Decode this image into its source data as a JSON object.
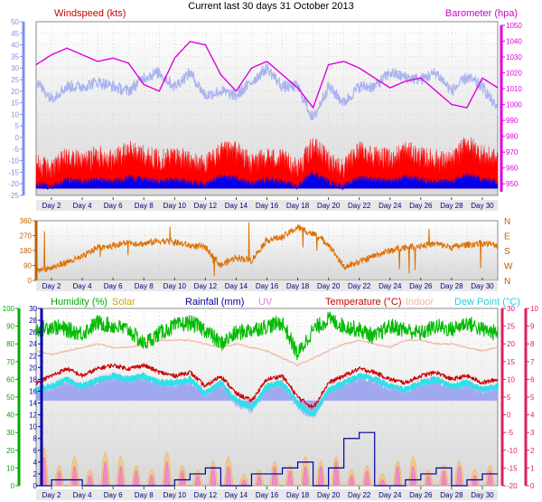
{
  "title": "Current last 30 days 31 October 2013",
  "colors": {
    "wind_speed": "#ff0000",
    "wind_gust": "#a9b3ef",
    "wind_avg": "#0000ee",
    "barometer": "#dd00dd",
    "direction": "#dd7000",
    "humidity": "#00bb00",
    "solar": "#c8b000",
    "rainfall": "#000099",
    "uv": "#e080e0",
    "temperature": "#cc0000",
    "indoor": "#f0b8a0",
    "dew_point": "#30e0e8",
    "dew_point_shadow": "#a0a8f0",
    "axis_left_blue": "#8090e0",
    "axis_direction": "#c06000",
    "axis_humidity": "#00aa00",
    "axis_rain": "#0000aa",
    "axis_temperature": "#dd2060"
  },
  "x_axis": {
    "labels": [
      "Day 2",
      "Day 4",
      "Day 6",
      "Day 8",
      "Day 10",
      "Day 12",
      "Day 14",
      "Day 16",
      "Day 18",
      "Day 20",
      "Day 22",
      "Day 24",
      "Day 26",
      "Day 28",
      "Day 30"
    ]
  },
  "chart_data": [
    {
      "type": "line",
      "panel": "wind-barometer",
      "series_labels": {
        "wind": "Windspeed (kts)",
        "barometer": "Barometer (hpa)"
      },
      "x_range": [
        1,
        31
      ],
      "wind_ylim": [
        -25,
        50
      ],
      "wind_ticks": [
        -25,
        -20,
        -15,
        -10,
        -5,
        0,
        5,
        10,
        15,
        20,
        25,
        30,
        35,
        40,
        45,
        50
      ],
      "baro_ylim": [
        945,
        1050
      ],
      "baro_ticks": [
        950,
        960,
        970,
        980,
        990,
        1000,
        1010,
        1020,
        1030,
        1040,
        1050
      ],
      "barometer": {
        "x": [
          1,
          2,
          3,
          4,
          5,
          6,
          7,
          8,
          9,
          10,
          11,
          12,
          13,
          14,
          15,
          16,
          17,
          18,
          19,
          20,
          21,
          22,
          23,
          24,
          25,
          26,
          27,
          28,
          29,
          30,
          31
        ],
        "y": [
          1024,
          1030,
          1034,
          1030,
          1026,
          1028,
          1025,
          1012,
          1008,
          1028,
          1038,
          1036,
          1018,
          1008,
          1022,
          1026,
          1018,
          1010,
          998,
          1024,
          1026,
          1022,
          1016,
          1010,
          1014,
          1016,
          1008,
          1000,
          998,
          1016,
          1010
        ]
      },
      "gust": {
        "x": [
          1,
          2,
          3,
          4,
          5,
          6,
          7,
          8,
          9,
          10,
          11,
          12,
          13,
          14,
          15,
          16,
          17,
          18,
          19,
          20,
          21,
          22,
          23,
          24,
          25,
          26,
          27,
          28,
          29,
          30,
          31
        ],
        "y": [
          24,
          17,
          22,
          22,
          24,
          22,
          20,
          26,
          28,
          22,
          28,
          18,
          20,
          18,
          24,
          30,
          22,
          22,
          8,
          22,
          15,
          22,
          22,
          28,
          26,
          25,
          28,
          20,
          26,
          22,
          12
        ]
      },
      "speed": {
        "x": [
          1,
          2,
          3,
          4,
          5,
          6,
          7,
          8,
          9,
          10,
          11,
          12,
          13,
          14,
          15,
          16,
          17,
          18,
          19,
          20,
          21,
          22,
          23,
          24,
          25,
          26,
          27,
          28,
          29,
          30,
          31
        ],
        "y": [
          -14,
          -16,
          -11,
          -13,
          -10,
          -12,
          -8,
          -10,
          -12,
          -10,
          -13,
          -14,
          -9,
          -8,
          -14,
          -11,
          -12,
          -16,
          -6,
          -12,
          -16,
          -8,
          -10,
          -12,
          -8,
          -11,
          -12,
          -13,
          -5,
          -10,
          -12
        ]
      },
      "avg": {
        "x": [
          1,
          2,
          3,
          4,
          5,
          6,
          7,
          8,
          9,
          10,
          11,
          12,
          13,
          14,
          15,
          16,
          17,
          18,
          19,
          20,
          21,
          22,
          23,
          24,
          25,
          26,
          27,
          28,
          29,
          30,
          31
        ],
        "y": [
          -21,
          -22,
          -19,
          -20,
          -19,
          -20,
          -18,
          -19,
          -20,
          -19,
          -20,
          -21,
          -18,
          -18,
          -21,
          -19,
          -20,
          -22,
          -16,
          -20,
          -22,
          -18,
          -19,
          -20,
          -18,
          -19,
          -20,
          -20,
          -17,
          -19,
          -20
        ]
      }
    },
    {
      "type": "line",
      "panel": "wind-direction",
      "ylim": [
        0,
        360
      ],
      "ticks": [
        0,
        90,
        180,
        270,
        360
      ],
      "compass_labels": [
        "N",
        "W",
        "S",
        "E",
        "N"
      ],
      "x": [
        1,
        2,
        3,
        4,
        5,
        6,
        7,
        8,
        9,
        10,
        11,
        12,
        13,
        14,
        15,
        16,
        17,
        18,
        19,
        20,
        21,
        22,
        23,
        24,
        25,
        26,
        27,
        28,
        29,
        30,
        31
      ],
      "y": [
        60,
        75,
        110,
        140,
        200,
        210,
        230,
        220,
        240,
        230,
        210,
        200,
        90,
        140,
        120,
        245,
        260,
        320,
        280,
        220,
        80,
        110,
        150,
        180,
        200,
        210,
        220,
        200,
        215,
        225,
        210
      ]
    },
    {
      "type": "line",
      "panel": "humidity-rain-temperature",
      "series_labels": {
        "humidity": "Humidity (%)",
        "solar": "Solar",
        "rainfall": "Rainfall (mm)",
        "uv": "UV",
        "temperature": "Temperature (°C)",
        "indoor": "Indoor",
        "dew_point": "Dew Point (°C)"
      },
      "humidity_ylim": [
        0,
        100
      ],
      "humidity_ticks": [
        0,
        10,
        20,
        30,
        40,
        50,
        60,
        70,
        80,
        90,
        100
      ],
      "rain_ylim": [
        0,
        30
      ],
      "rain_ticks": [
        0,
        2,
        4,
        6,
        8,
        10,
        12,
        14,
        16,
        18,
        20,
        22,
        24,
        26,
        28,
        30
      ],
      "temp_ylim": [
        -20,
        30
      ],
      "temp_ticks": [
        -20,
        -15,
        -10,
        -5,
        0,
        5,
        10,
        15,
        20,
        25,
        30
      ],
      "uv_ylim": [
        0,
        10
      ],
      "uv_ticks": [
        0,
        1,
        2,
        3,
        4,
        5,
        6,
        7,
        8,
        9,
        10
      ],
      "humidity": {
        "x": [
          1,
          2,
          3,
          4,
          5,
          6,
          7,
          8,
          9,
          10,
          11,
          12,
          13,
          14,
          15,
          16,
          17,
          18,
          19,
          20,
          21,
          22,
          23,
          24,
          25,
          26,
          27,
          28,
          29,
          30,
          31
        ],
        "y": [
          88,
          90,
          88,
          86,
          92,
          90,
          88,
          80,
          86,
          90,
          92,
          88,
          80,
          86,
          88,
          90,
          92,
          74,
          88,
          94,
          90,
          88,
          84,
          90,
          88,
          86,
          90,
          88,
          92,
          88,
          86
        ]
      },
      "temperature": {
        "x": [
          1,
          2,
          3,
          4,
          5,
          6,
          7,
          8,
          9,
          10,
          11,
          12,
          13,
          14,
          15,
          16,
          17,
          18,
          19,
          20,
          21,
          22,
          23,
          24,
          25,
          26,
          27,
          28,
          29,
          30,
          31
        ],
        "y": [
          9,
          11,
          13,
          11,
          13,
          14,
          13,
          14,
          12,
          11,
          12,
          8,
          11,
          6,
          4,
          10,
          11,
          5,
          2,
          9,
          11,
          13,
          12,
          10,
          9,
          11,
          12,
          10,
          11,
          9,
          10
        ]
      },
      "dew_point": {
        "x": [
          1,
          2,
          3,
          4,
          5,
          6,
          7,
          8,
          9,
          10,
          11,
          12,
          13,
          14,
          15,
          16,
          17,
          18,
          19,
          20,
          21,
          22,
          23,
          24,
          25,
          26,
          27,
          28,
          29,
          30,
          31
        ],
        "y": [
          7,
          8,
          10,
          8,
          10,
          11,
          10,
          11,
          9,
          9,
          10,
          6,
          9,
          4,
          2,
          8,
          9,
          3,
          0,
          7,
          9,
          11,
          10,
          8,
          7,
          9,
          10,
          8,
          9,
          7,
          8
        ]
      },
      "indoor": {
        "x": [
          1,
          2,
          3,
          4,
          5,
          6,
          7,
          8,
          9,
          10,
          11,
          12,
          13,
          14,
          15,
          16,
          17,
          18,
          19,
          20,
          21,
          22,
          23,
          24,
          25,
          26,
          27,
          28,
          29,
          30,
          31
        ],
        "y": [
          18,
          17,
          18,
          19,
          20,
          19,
          19,
          20,
          21,
          21,
          21,
          20,
          19,
          20,
          19,
          18,
          16,
          14,
          16,
          18,
          20,
          21,
          20,
          19,
          21,
          21,
          20,
          20,
          19,
          18,
          19
        ]
      },
      "rainfall_cumulative": {
        "x": [
          1,
          2,
          3,
          4,
          5,
          6,
          7,
          8,
          9,
          10,
          11,
          12,
          13,
          14,
          15,
          16,
          17,
          18,
          19,
          20,
          21,
          22,
          23,
          24,
          25,
          26,
          27,
          28,
          29,
          30,
          31
        ],
        "y": [
          0,
          1,
          1,
          0,
          0,
          0,
          0,
          0,
          0,
          1,
          2,
          3,
          0,
          0,
          2,
          2,
          3,
          4,
          0,
          3,
          8,
          9,
          0,
          0,
          1,
          2,
          3,
          0,
          1,
          2,
          2
        ]
      },
      "solar_peaks": {
        "x": [
          1.5,
          2.5,
          3.5,
          4.5,
          5.5,
          6.5,
          7.5,
          8.5,
          9.5,
          10.5,
          11.5,
          12.5,
          13.5,
          14.5,
          15.5,
          16.5,
          17.5,
          18.5,
          19.5,
          20.5,
          21.5,
          22.5,
          23.5,
          24.5,
          25.5,
          26.5,
          27.5,
          28.5,
          29.5,
          30.5
        ],
        "y": [
          8,
          4,
          6,
          3,
          7,
          6,
          4,
          3,
          7,
          4,
          3,
          5,
          6,
          2,
          3,
          5,
          4,
          6,
          5,
          6,
          3,
          4,
          2,
          5,
          6,
          3,
          4,
          5,
          3,
          4
        ]
      },
      "uv_peaks": {
        "x": [
          1.5,
          2.5,
          3.5,
          4.5,
          5.5,
          6.5,
          7.5,
          8.5,
          9.5,
          10.5,
          11.5,
          12.5,
          13.5,
          14.5,
          15.5,
          16.5,
          17.5,
          18.5,
          19.5,
          20.5,
          21.5,
          22.5,
          23.5,
          24.5,
          25.5,
          26.5,
          27.5,
          28.5,
          29.5,
          30.5
        ],
        "y": [
          3,
          1.5,
          2,
          1,
          2.5,
          2,
          1.5,
          1,
          2.5,
          1.5,
          1,
          2,
          2,
          0.5,
          1,
          2,
          1.5,
          2,
          2,
          2.5,
          1,
          1.5,
          0.5,
          2,
          2,
          1,
          1.5,
          2,
          1,
          1.5
        ]
      }
    }
  ]
}
